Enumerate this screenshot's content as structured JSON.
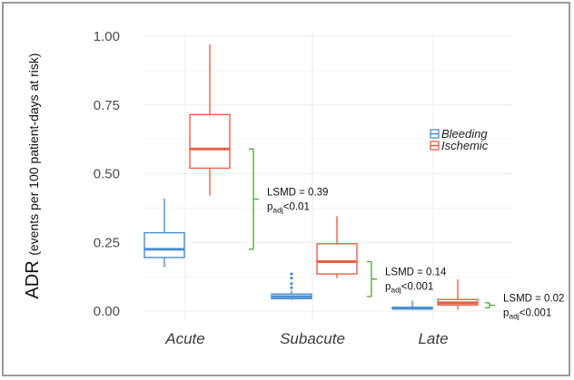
{
  "chart_data": {
    "type": "boxplot",
    "ylabel_main": "ADR",
    "ylabel_sub": "(events per 100 patient-days at risk)",
    "ylim": [
      0,
      1.0
    ],
    "y_ticks": [
      "0.00",
      "0.25",
      "0.50",
      "0.75",
      "1.00"
    ],
    "categories": [
      "Acute",
      "Subacute",
      "Late"
    ],
    "grid": true,
    "legend_position": "right",
    "series": [
      {
        "name": "Bleeding",
        "color": "#4a90d0",
        "boxes": [
          {
            "category": "Acute",
            "min": 0.16,
            "q1": 0.195,
            "median": 0.225,
            "q3": 0.285,
            "max": 0.41,
            "outliers": []
          },
          {
            "category": "Subacute",
            "min": 0.04,
            "q1": 0.045,
            "median": 0.053,
            "q3": 0.062,
            "max": 0.075,
            "outliers": [
              0.085,
              0.1,
              0.12,
              0.135
            ]
          },
          {
            "category": "Late",
            "min": 0.005,
            "q1": 0.008,
            "median": 0.01,
            "q3": 0.014,
            "max": 0.038,
            "outliers": []
          }
        ]
      },
      {
        "name": "Ischemic",
        "color": "#e8604a",
        "boxes": [
          {
            "category": "Acute",
            "min": 0.42,
            "q1": 0.52,
            "median": 0.59,
            "q3": 0.715,
            "max": 0.97,
            "outliers": []
          },
          {
            "category": "Subacute",
            "min": 0.12,
            "q1": 0.135,
            "median": 0.18,
            "q3": 0.245,
            "max": 0.345,
            "outliers": []
          },
          {
            "category": "Late",
            "min": 0.005,
            "q1": 0.022,
            "median": 0.03,
            "q3": 0.042,
            "max": 0.115,
            "outliers": []
          }
        ]
      }
    ],
    "annotations": [
      {
        "category": "Acute",
        "lsmd": "LSMD = 0.39",
        "p_prefix": "p",
        "p_sub": "adj",
        "p_value": "<0.01",
        "bracket_low": 0.225,
        "bracket_high": 0.59
      },
      {
        "category": "Subacute",
        "lsmd": "LSMD = 0.14",
        "p_prefix": "p",
        "p_sub": "adj",
        "p_value": "<0.001",
        "bracket_low": 0.053,
        "bracket_high": 0.18
      },
      {
        "category": "Late",
        "lsmd": "LSMD = 0.02",
        "p_prefix": "p",
        "p_sub": "adj",
        "p_value": "<0.001",
        "bracket_low": 0.012,
        "bracket_high": 0.03
      }
    ],
    "bracket_color": "#5aa843"
  }
}
